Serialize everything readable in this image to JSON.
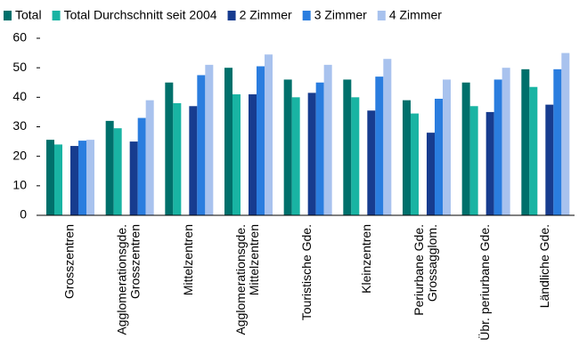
{
  "chart_data": {
    "type": "bar",
    "categories": [
      "Grosszentren",
      "Agglomerationsgde.\nGrosszentren",
      "Mittelzentren",
      "Agglomerationsgde.\nMittelzentren",
      "Touristische Gde.",
      "Kleinzentren",
      "Periurbane Gde.\nGrossagglom.",
      "Übr. periurbane Gde.",
      "Ländliche Gde."
    ],
    "series": [
      {
        "name": "Total",
        "color": "#00706b",
        "values": [
          25.6,
          32,
          45,
          50,
          46,
          46,
          39,
          45,
          49.5
        ]
      },
      {
        "name": "Total Durchschnitt seit 2004",
        "color": "#19b4a3",
        "values": [
          24,
          29.5,
          38,
          41,
          40,
          40,
          34.5,
          37,
          43.5
        ]
      },
      {
        "name": "2 Zimmer",
        "color": "#173c8f",
        "values": [
          23.5,
          25,
          37,
          41,
          41.5,
          35.5,
          28,
          35,
          37.5
        ]
      },
      {
        "name": "3 Zimmer",
        "color": "#2a7ddf",
        "values": [
          25.3,
          33,
          47.5,
          50.5,
          45,
          47,
          39.5,
          46,
          49.5
        ]
      },
      {
        "name": "4 Zimmer",
        "color": "#a8c2ee",
        "values": [
          25.6,
          39,
          51,
          54.5,
          51,
          53,
          46,
          50,
          55
        ]
      }
    ],
    "ylim": [
      0,
      60
    ],
    "yticks": [
      0,
      10,
      20,
      30,
      40,
      50,
      60
    ],
    "grid": false,
    "legend": "top"
  }
}
